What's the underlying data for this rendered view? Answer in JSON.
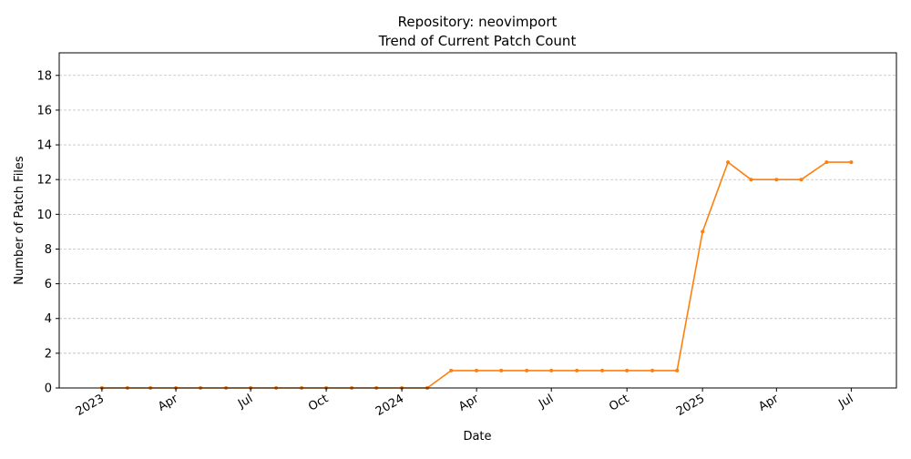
{
  "chart_data": {
    "type": "line",
    "title": "Repository: neovimport",
    "subtitle": "Trend of Current Patch Count",
    "xlabel": "Date",
    "ylabel": "Number of Patch Files",
    "ylim": [
      0,
      19.3
    ],
    "yticks": [
      0,
      2,
      4,
      6,
      8,
      10,
      12,
      14,
      16,
      18
    ],
    "xlim": [
      "2022-11-10",
      "2025-08-25"
    ],
    "xticks": [
      {
        "date": "2023-01-01",
        "label": "2023"
      },
      {
        "date": "2023-04-01",
        "label": "Apr"
      },
      {
        "date": "2023-07-01",
        "label": "Jul"
      },
      {
        "date": "2023-10-01",
        "label": "Oct"
      },
      {
        "date": "2024-01-01",
        "label": "2024"
      },
      {
        "date": "2024-04-01",
        "label": "Apr"
      },
      {
        "date": "2024-07-01",
        "label": "Jul"
      },
      {
        "date": "2024-10-01",
        "label": "Oct"
      },
      {
        "date": "2025-01-01",
        "label": "2025"
      },
      {
        "date": "2025-04-01",
        "label": "Apr"
      },
      {
        "date": "2025-07-01",
        "label": "Jul"
      }
    ],
    "grid": "y-dashed",
    "color": "#ff7f0e",
    "x": [
      "2023-01-01",
      "2023-02-01",
      "2023-03-01",
      "2023-04-01",
      "2023-05-01",
      "2023-06-01",
      "2023-07-01",
      "2023-08-01",
      "2023-09-01",
      "2023-10-01",
      "2023-11-01",
      "2023-12-01",
      "2024-01-01",
      "2024-02-01",
      "2024-03-01",
      "2024-04-01",
      "2024-05-01",
      "2024-06-01",
      "2024-07-01",
      "2024-08-01",
      "2024-09-01",
      "2024-10-01",
      "2024-11-01",
      "2024-12-01",
      "2025-01-01",
      "2025-02-01",
      "2025-03-01",
      "2025-04-01",
      "2025-05-01",
      "2025-06-01",
      "2025-07-01"
    ],
    "values": [
      0,
      0,
      0,
      0,
      0,
      0,
      0,
      0,
      0,
      0,
      0,
      0,
      0,
      0,
      1,
      1,
      1,
      1,
      1,
      1,
      1,
      1,
      1,
      1,
      9,
      13,
      12,
      12,
      12,
      13,
      13
    ]
  }
}
